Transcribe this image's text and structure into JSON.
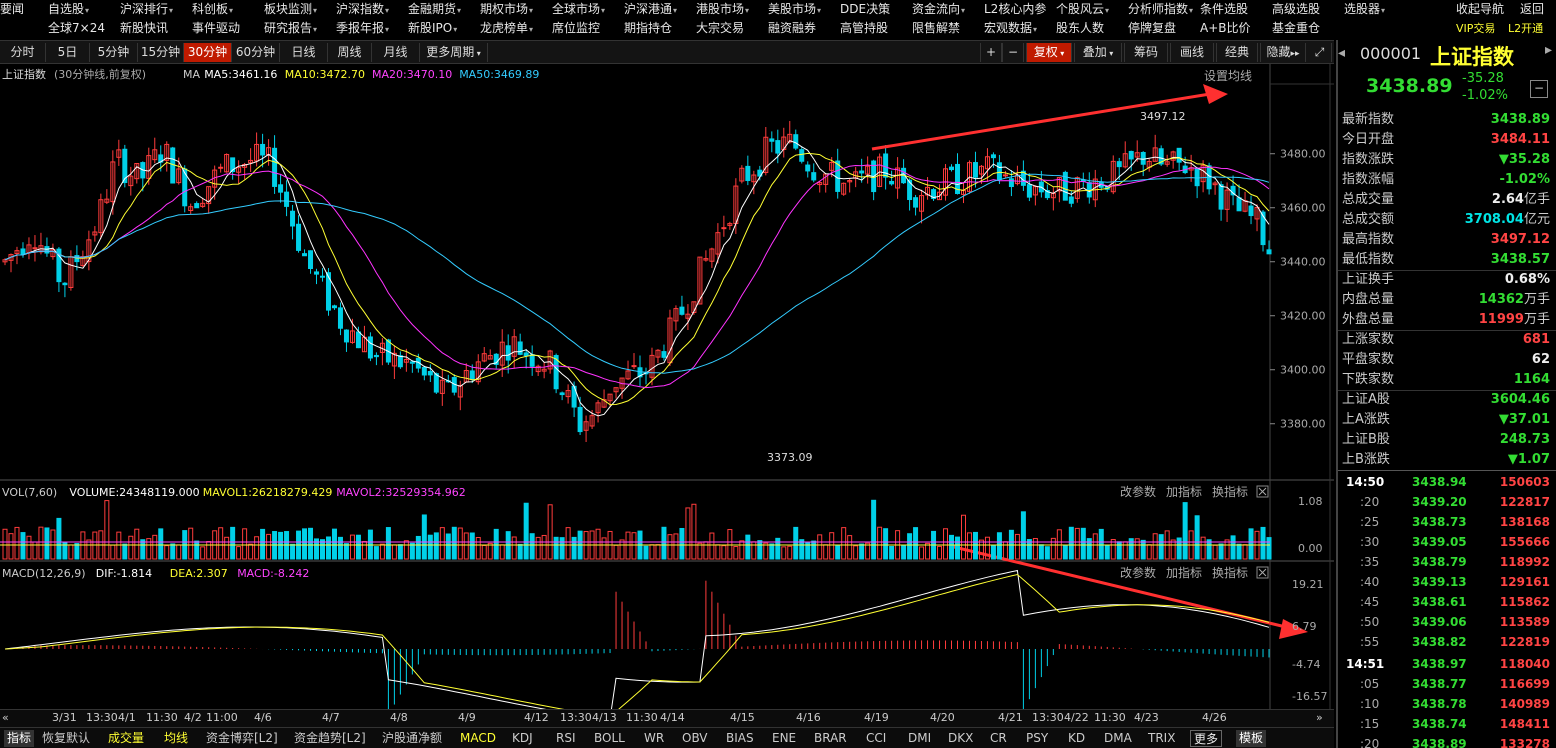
{
  "menu1": [
    "要闻",
    "自选股",
    "沪深排行",
    "科创板",
    "板块监测",
    "沪深指数",
    "金融期货",
    "期权市场",
    "全球市场",
    "沪深港通",
    "港股市场",
    "美股市场",
    "DDE决策",
    "资金流向",
    "L2核心内参",
    "个股风云",
    "分析师指数",
    "条件选股",
    "高级选股",
    "选股器",
    "收起导航",
    "返回"
  ],
  "menu1_arrows": [
    false,
    true,
    true,
    true,
    true,
    true,
    true,
    true,
    true,
    true,
    true,
    true,
    false,
    true,
    false,
    true,
    true,
    false,
    false,
    true,
    false,
    false
  ],
  "menu2": [
    "全球7×24",
    "新股快讯",
    "事件驱动",
    "研究报告",
    "季报年报",
    "新股IPO",
    "龙虎榜单",
    "席位监控",
    "期指持仓",
    "大宗交易",
    "融资融券",
    "高管持股",
    "限售解禁",
    "宏观数据",
    "股东人数",
    "停牌复盘",
    "A+B比价",
    "基金重仓",
    "VIP交易",
    "L2开通"
  ],
  "menu2_arrows": [
    false,
    false,
    false,
    true,
    true,
    true,
    true,
    false,
    false,
    false,
    false,
    false,
    false,
    true,
    false,
    false,
    false,
    false,
    false,
    false
  ],
  "toolbar": [
    "分时",
    "5日",
    "5分钟",
    "15分钟",
    "30分钟",
    "60分钟",
    "日线",
    "周线",
    "月线",
    "更多周期"
  ],
  "toolbar_selected": "30分钟",
  "toolbar_right": [
    "+",
    "−",
    "复权",
    "叠加",
    "筹码",
    "画线",
    "经典",
    "隐藏"
  ],
  "ma_header": {
    "name": "上证指数",
    "period": "(30分钟线,前复权)",
    "ma": "MA",
    "ma5": "MA5:3461.16",
    "ma10": "MA10:3472.70",
    "ma20": "MA20:3470.10",
    "ma50": "MA50:3469.89",
    "setting": "设置均线"
  },
  "vol_header": {
    "name": "VOL(7,60)",
    "volume": "VOLUME:24348119.000",
    "mavol1": "MAVOL1:26218279.429",
    "mavol2": "MAVOL2:32529354.962",
    "btn1": "改参数",
    "btn2": "加指标",
    "btn3": "换指标"
  },
  "macd_header": {
    "name": "MACD(12,26,9)",
    "dif": "DIF:-1.814",
    "dea": "DEA:2.307",
    "macd": "MACD:-8.242",
    "btn1": "改参数",
    "btn2": "加指标",
    "btn3": "换指标"
  },
  "price_axis": [
    "3480.00",
    "3460.00",
    "3440.00",
    "3420.00",
    "3400.00",
    "3380.00"
  ],
  "vol_axis": [
    "1.08",
    "0.00"
  ],
  "macd_axis": [
    "19.21",
    "6.79",
    "-4.74",
    "-16.57"
  ],
  "labels": {
    "high": "3497.12",
    "low": "3373.09"
  },
  "time_axis": [
    "3/31",
    "13:30",
    "4/1",
    "11:30",
    "4/2",
    "11:00",
    "4/6",
    "4/7",
    "4/8",
    "4/9",
    "4/12",
    "13:30",
    "4/13",
    "11:30",
    "4/14",
    "4/15",
    "4/16",
    "4/19",
    "4/20",
    "4/21",
    "13:30",
    "4/22",
    "11:30",
    "4/23",
    "4/26"
  ],
  "bottom_tabs": [
    "指标",
    "恢复默认",
    "成交量",
    "均线",
    "资金博弈[L2]",
    "资金趋势[L2]",
    "沪股通净额",
    "MACD",
    "KDJ",
    "RSI",
    "BOLL",
    "WR",
    "OBV",
    "BIAS",
    "ENE",
    "BRAR",
    "CCI",
    "DMI",
    "DKX",
    "CR",
    "PSY",
    "KD",
    "DMA",
    "TRIX",
    "更多",
    "模板"
  ],
  "side": {
    "code": "000001",
    "name": "上证指数",
    "price": "3438.89",
    "change": "-35.28",
    "pct": "-1.02%",
    "stats": [
      {
        "k": "最新指数",
        "v": "3438.89",
        "c": "grn"
      },
      {
        "k": "今日开盘",
        "v": "3484.11",
        "c": "red"
      },
      {
        "k": "指数涨跌",
        "v": "▼35.28",
        "c": "grn"
      },
      {
        "k": "指数涨幅",
        "v": "-1.02%",
        "c": "grn"
      },
      {
        "k": "总成交量",
        "v": "2.64",
        "u": "亿手",
        "c": "wht"
      },
      {
        "k": "总成交额",
        "v": "3708.04",
        "u": "亿元",
        "c": "cyan"
      },
      {
        "k": "最高指数",
        "v": "3497.12",
        "c": "red"
      },
      {
        "k": "最低指数",
        "v": "3438.57",
        "c": "grn"
      },
      {
        "k": "上证换手",
        "v": "0.68%",
        "c": "wht"
      },
      {
        "k": "内盘总量",
        "v": "14362",
        "u": "万手",
        "c": "grn"
      },
      {
        "k": "外盘总量",
        "v": "11999",
        "u": "万手",
        "c": "red"
      },
      {
        "k": "上涨家数",
        "v": "681",
        "c": "red"
      },
      {
        "k": "平盘家数",
        "v": "62",
        "c": "wht"
      },
      {
        "k": "下跌家数",
        "v": "1164",
        "c": "grn"
      },
      {
        "k": "上证A股",
        "v": "3604.46",
        "c": "grn"
      },
      {
        "k": "上A涨跌",
        "v": "▼37.01",
        "c": "grn"
      },
      {
        "k": "上证B股",
        "v": "248.73",
        "c": "grn"
      },
      {
        "k": "上B涨跌",
        "v": "▼1.07",
        "c": "grn"
      }
    ],
    "ticks": [
      {
        "t": "14:50",
        "p": "3438.94",
        "v": "150603"
      },
      {
        "t": ":20",
        "p": "3439.20",
        "v": "122817"
      },
      {
        "t": ":25",
        "p": "3438.73",
        "v": "138168"
      },
      {
        "t": ":30",
        "p": "3439.05",
        "v": "155666"
      },
      {
        "t": ":35",
        "p": "3438.79",
        "v": "118992"
      },
      {
        "t": ":40",
        "p": "3439.13",
        "v": "129161"
      },
      {
        "t": ":45",
        "p": "3438.61",
        "v": "115862"
      },
      {
        "t": ":50",
        "p": "3439.06",
        "v": "113589"
      },
      {
        "t": ":55",
        "p": "3438.82",
        "v": "122819"
      },
      {
        "t": "14:51",
        "p": "3438.97",
        "v": "118040"
      },
      {
        "t": ":05",
        "p": "3438.77",
        "v": "116699"
      },
      {
        "t": ":10",
        "p": "3438.78",
        "v": "140989"
      },
      {
        "t": ":15",
        "p": "3438.74",
        "v": "148411"
      },
      {
        "t": ":20",
        "p": "3438.89",
        "v": "133278"
      }
    ]
  },
  "colors": {
    "up": "#ff3c3c",
    "down": "#00d0e8",
    "ma5": "#ffffff",
    "ma10": "#ffff33",
    "ma20": "#ff33ff",
    "ma50": "#33ccff",
    "arrow": "#ff3030",
    "selected": "#c01a00"
  }
}
